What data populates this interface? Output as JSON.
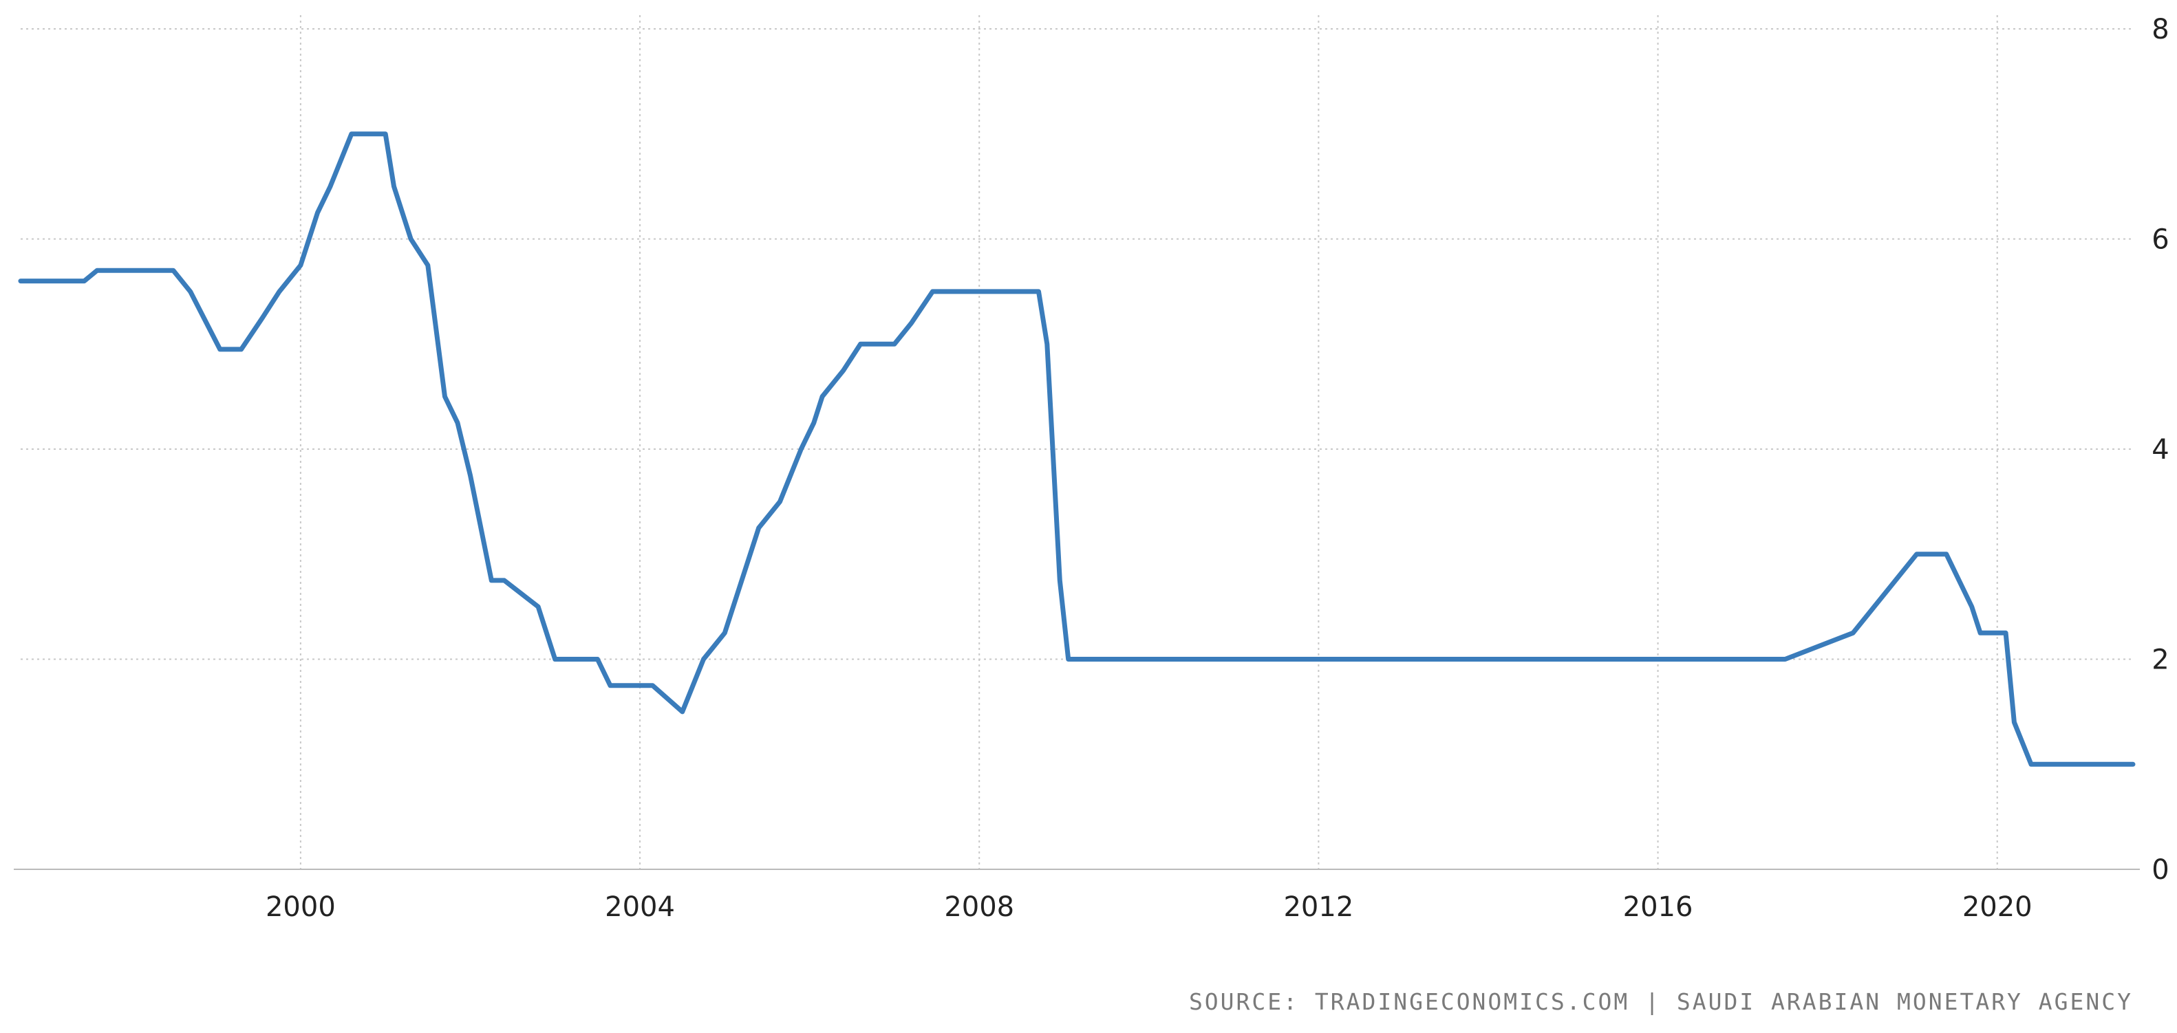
{
  "chart_data": {
    "type": "line",
    "title": "",
    "xlabel": "",
    "ylabel": "",
    "x_unit": "year",
    "xlim": [
      1996.7,
      2021.6
    ],
    "ylim": [
      0,
      8
    ],
    "x_ticks": [
      2000,
      2004,
      2008,
      2012,
      2016,
      2020
    ],
    "x_tick_labels": [
      "2000",
      "2004",
      "2008",
      "2012",
      "2016",
      "2020"
    ],
    "y_ticks": [
      0,
      2,
      4,
      6,
      8
    ],
    "y_tick_labels": [
      "0",
      "2",
      "4",
      "6",
      "8"
    ],
    "y_axis_side": "right",
    "grid": {
      "x": true,
      "y": true,
      "style": "dotted"
    },
    "legend": "none",
    "series": [
      {
        "color": "#3a7cbb",
        "x": [
          1996.7,
          1997.45,
          1997.6,
          1998.35,
          1998.5,
          1998.7,
          1999.05,
          1999.3,
          1999.55,
          1999.75,
          2000.0,
          2000.2,
          2000.35,
          2000.6,
          2001.0,
          2001.1,
          2001.3,
          2001.5,
          2001.7,
          2001.85,
          2002.0,
          2002.25,
          2002.4,
          2002.8,
          2003.0,
          2003.5,
          2003.65,
          2004.15,
          2004.5,
          2004.75,
          2005.0,
          2005.2,
          2005.4,
          2005.65,
          2005.9,
          2006.05,
          2006.15,
          2006.4,
          2006.6,
          2007.0,
          2007.2,
          2007.45,
          2008.7,
          2008.8,
          2008.95,
          2009.05,
          2010.5,
          2017.5,
          2018.3,
          2018.55,
          2018.8,
          2019.05,
          2019.4,
          2019.55,
          2019.7,
          2019.8,
          2020.1,
          2020.2,
          2020.4,
          2021.6
        ],
        "y": [
          5.6,
          5.6,
          5.7,
          5.7,
          5.7,
          5.5,
          4.95,
          4.95,
          5.25,
          5.5,
          5.75,
          6.25,
          6.5,
          7.0,
          7.0,
          6.5,
          6.0,
          5.75,
          4.5,
          4.25,
          3.75,
          2.75,
          2.75,
          2.5,
          2.0,
          2.0,
          1.75,
          1.75,
          1.5,
          2.0,
          2.25,
          2.75,
          3.25,
          3.5,
          4.0,
          4.25,
          4.5,
          4.75,
          5.0,
          5.0,
          5.2,
          5.5,
          5.5,
          5.0,
          2.75,
          2.0,
          2.0,
          2.0,
          2.25,
          2.5,
          2.75,
          3.0,
          3.0,
          2.75,
          2.5,
          2.25,
          2.25,
          1.4,
          1.0,
          1.0
        ]
      }
    ],
    "source": "SOURCE: TRADINGECONOMICS.COM | SAUDI ARABIAN MONETARY AGENCY"
  }
}
